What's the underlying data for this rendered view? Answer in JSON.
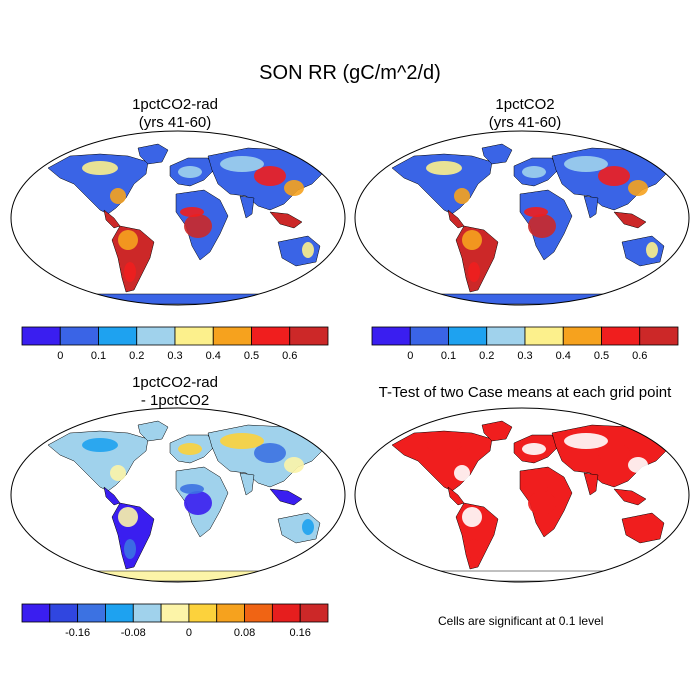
{
  "figure": {
    "title": "SON RR (gC/m^2/d)",
    "panels": [
      {
        "title_line1": "1pctCO2-rad",
        "title_line2": "(yrs 41-60)"
      },
      {
        "title_line1": "1pctCO2",
        "title_line2": "(yrs 41-60)"
      },
      {
        "title_line1": "1pctCO2-rad",
        "title_line2": "- 1pctCO2"
      },
      {
        "title_line1": "T-Test of two Case means at each grid point",
        "title_line2": ""
      }
    ],
    "note": "Cells are significant at 0.1 level"
  },
  "colorbars": {
    "top_left": {
      "colors": [
        "#3a1ef0",
        "#3a64e6",
        "#1ea2f0",
        "#a0d2ec",
        "#fcf08c",
        "#f6a21e",
        "#f01e1e",
        "#cc2828"
      ],
      "labels": [
        "0",
        "0.1",
        "0.2",
        "0.3",
        "0.4",
        "0.5",
        "0.6"
      ]
    },
    "top_right": {
      "colors": [
        "#3a1ef0",
        "#3a64e6",
        "#1ea2f0",
        "#a0d2ec",
        "#fcf08c",
        "#f6a21e",
        "#f01e1e",
        "#cc2828"
      ],
      "labels": [
        "0",
        "0.1",
        "0.2",
        "0.3",
        "0.4",
        "0.5",
        "0.6"
      ]
    },
    "bottom": {
      "colors": [
        "#3a1ef0",
        "#3046e0",
        "#3c72e2",
        "#1ea2f0",
        "#a0d2ec",
        "#fcf4a8",
        "#fcd23c",
        "#f6a21e",
        "#f06414",
        "#e61e1e",
        "#cc2828"
      ],
      "labels": [
        "-0.16",
        "-0.08",
        "0",
        "0.08",
        "0.16"
      ]
    }
  },
  "maps": {
    "tl": {
      "land": "#3a64e6",
      "antarctica": "#3a64e6",
      "tropics": "#cc2828",
      "hot": "#f01e1e",
      "warm": "#f6a21e",
      "mid": "#fcf08c",
      "cool": "#a0d2ec"
    },
    "tr": {
      "land": "#3a64e6",
      "antarctica": "#3a64e6",
      "tropics": "#cc2828",
      "hot": "#f01e1e",
      "warm": "#f6a21e",
      "mid": "#fcf08c",
      "cool": "#a0d2ec"
    },
    "bl": {
      "land": "#a0d2ec",
      "antarctica": "#fcf4a8",
      "tropics": "#3a1ef0",
      "hot": "#3c72e2",
      "warm": "#fcf4a8",
      "mid": "#1ea2f0",
      "cool": "#fcd23c"
    },
    "br": {
      "land": "#f01e1e",
      "antarctica": "#ffffff",
      "tropics": "#f01e1e",
      "hot": "#f01e1e",
      "warm": "#ffffff",
      "mid": "#f01e1e",
      "cool": "#ffffff"
    }
  }
}
